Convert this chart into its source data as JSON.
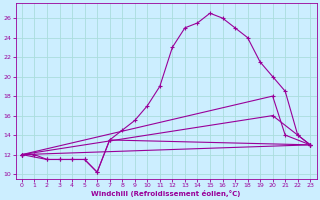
{
  "xlabel": "Windchill (Refroidissement éolien,°C)",
  "bg_color": "#cceeff",
  "grid_color": "#aadddd",
  "line_color": "#990099",
  "xlim": [
    -0.5,
    23.5
  ],
  "ylim": [
    9.5,
    27.5
  ],
  "yticks": [
    10,
    12,
    14,
    16,
    18,
    20,
    22,
    24,
    26
  ],
  "xticks": [
    0,
    1,
    2,
    3,
    4,
    5,
    6,
    7,
    8,
    9,
    10,
    11,
    12,
    13,
    14,
    15,
    16,
    17,
    18,
    19,
    20,
    21,
    22,
    23
  ],
  "lines": [
    {
      "x": [
        0,
        1,
        2,
        3,
        4,
        5,
        6,
        7,
        8,
        9,
        10,
        11,
        12,
        13,
        14,
        15,
        16,
        17,
        18,
        19,
        20,
        21,
        22,
        23
      ],
      "y": [
        12,
        12,
        11.5,
        11.5,
        11.5,
        11.5,
        10.2,
        13.5,
        14.5,
        15.5,
        17,
        19,
        23,
        25,
        25.5,
        26.5,
        26,
        25,
        24,
        21.5,
        20,
        18.5,
        14,
        13
      ]
    },
    {
      "x": [
        0,
        23
      ],
      "y": [
        12,
        13
      ]
    },
    {
      "x": [
        0,
        20,
        22,
        23
      ],
      "y": [
        12,
        16,
        14,
        13
      ]
    },
    {
      "x": [
        0,
        20,
        21,
        23
      ],
      "y": [
        12,
        18,
        14,
        13
      ]
    },
    {
      "x": [
        0,
        2,
        3,
        4,
        5,
        6,
        7,
        23
      ],
      "y": [
        12,
        11.5,
        11.5,
        11.5,
        11.5,
        10.2,
        13.5,
        13
      ]
    }
  ]
}
